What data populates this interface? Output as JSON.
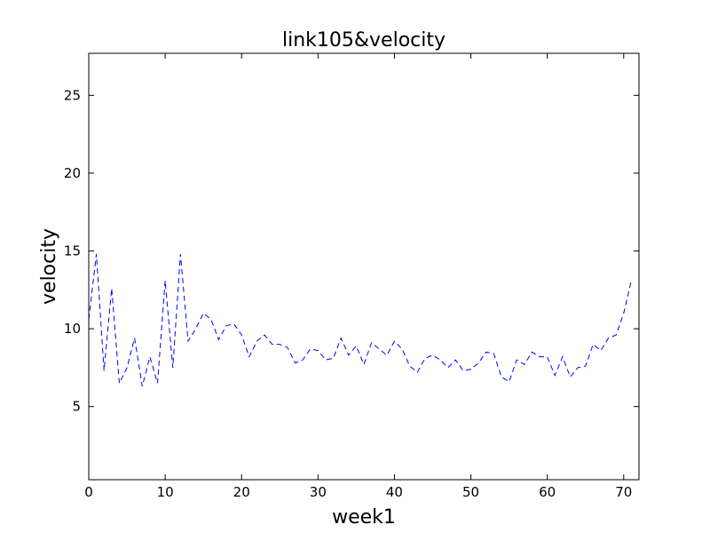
{
  "chart_data": {
    "type": "line",
    "title": "link105&velocity",
    "xlabel": "week1",
    "ylabel": "velocity",
    "xlim": [
      0,
      72
    ],
    "ylim": [
      0.3,
      27.7
    ],
    "xticks": [
      0,
      10,
      20,
      30,
      40,
      50,
      60,
      70
    ],
    "yticks": [
      5,
      10,
      15,
      20,
      25
    ],
    "grid": false,
    "legend": "none",
    "series": [
      {
        "color": "#0000ff",
        "line_style": "dashed",
        "x": [
          0,
          1,
          2,
          3,
          4,
          5,
          6,
          7,
          8,
          9,
          10,
          11,
          12,
          13,
          14,
          15,
          16,
          17,
          18,
          19,
          20,
          21,
          22,
          23,
          24,
          25,
          26,
          27,
          28,
          29,
          30,
          31,
          32,
          33,
          34,
          35,
          36,
          37,
          38,
          39,
          40,
          41,
          42,
          43,
          44,
          45,
          46,
          47,
          48,
          49,
          50,
          51,
          52,
          53,
          54,
          55,
          56,
          57,
          58,
          59,
          60,
          61,
          62,
          63,
          64,
          65,
          66,
          67,
          68,
          69,
          70,
          71
        ],
        "y": [
          10.6,
          14.8,
          7.3,
          12.6,
          6.5,
          7.5,
          9.4,
          6.3,
          8.2,
          6.5,
          13.1,
          7.5,
          14.8,
          9.2,
          10.0,
          11.0,
          10.6,
          9.3,
          10.2,
          10.3,
          9.6,
          8.2,
          9.2,
          9.6,
          9.0,
          9.0,
          8.8,
          7.8,
          8.0,
          8.7,
          8.6,
          8.0,
          8.1,
          9.4,
          8.3,
          8.9,
          7.7,
          9.1,
          8.7,
          8.3,
          9.2,
          8.7,
          7.6,
          7.2,
          8.1,
          8.3,
          8.0,
          7.5,
          8.0,
          7.3,
          7.4,
          7.8,
          8.5,
          8.4,
          6.9,
          6.6,
          8.0,
          7.7,
          8.5,
          8.2,
          8.2,
          7.0,
          8.2,
          6.9,
          7.5,
          7.6,
          9.0,
          8.6,
          9.4,
          9.6,
          11.0,
          13.1
        ]
      }
    ]
  }
}
